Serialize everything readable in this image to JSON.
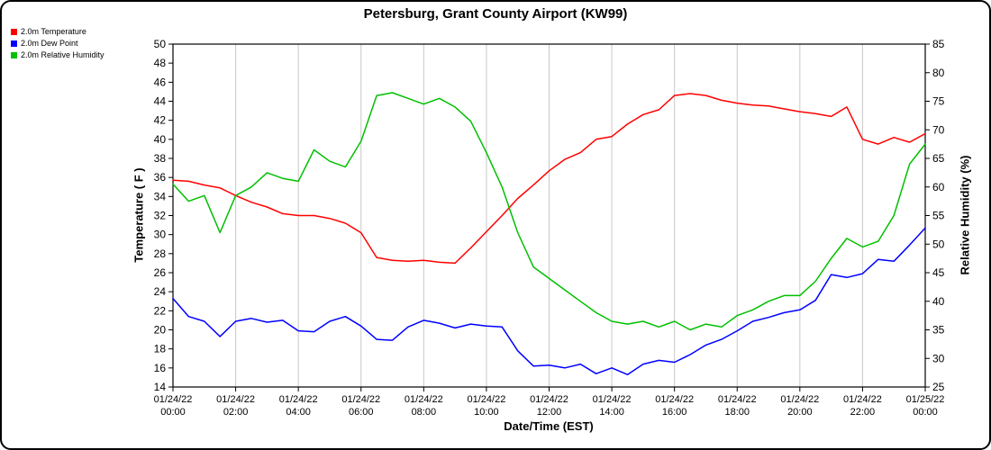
{
  "chart_data": {
    "type": "line",
    "title": "Petersburg, Grant County Airport (KW99)",
    "xlabel": "Date/Time (EST)",
    "ylabel_left": "Temperature ( F )",
    "ylabel_right": "Relative Humidity (%)",
    "legend_position": "top-left",
    "grid": "vertical-only",
    "grid_color": "#c8c8c8",
    "x_range": [
      0,
      24
    ],
    "x_step_hours": 0.5,
    "left_axis": {
      "min": 14,
      "max": 50,
      "step": 2,
      "ticks": [
        50,
        48,
        46,
        44,
        42,
        40,
        38,
        36,
        34,
        32,
        30,
        28,
        26,
        24,
        22,
        20,
        18,
        16,
        14
      ]
    },
    "right_axis": {
      "min": 25,
      "max": 85,
      "step": 5,
      "ticks": [
        85,
        80,
        75,
        70,
        65,
        60,
        55,
        50,
        45,
        40,
        35,
        30,
        25
      ]
    },
    "x_ticks": [
      {
        "hour": 0,
        "date": "01/24/22",
        "time": "00:00"
      },
      {
        "hour": 2,
        "date": "01/24/22",
        "time": "02:00"
      },
      {
        "hour": 4,
        "date": "01/24/22",
        "time": "04:00"
      },
      {
        "hour": 6,
        "date": "01/24/22",
        "time": "06:00"
      },
      {
        "hour": 8,
        "date": "01/24/22",
        "time": "08:00"
      },
      {
        "hour": 10,
        "date": "01/24/22",
        "time": "10:00"
      },
      {
        "hour": 12,
        "date": "01/24/22",
        "time": "12:00"
      },
      {
        "hour": 14,
        "date": "01/24/22",
        "time": "14:00"
      },
      {
        "hour": 16,
        "date": "01/24/22",
        "time": "16:00"
      },
      {
        "hour": 18,
        "date": "01/24/22",
        "time": "18:00"
      },
      {
        "hour": 20,
        "date": "01/24/22",
        "time": "20:00"
      },
      {
        "hour": 22,
        "date": "01/24/22",
        "time": "22:00"
      },
      {
        "hour": 24,
        "date": "01/25/22",
        "time": "00:00"
      }
    ],
    "series": [
      {
        "id": "temperature",
        "name": "2.0m Temperature",
        "color": "#ff0000",
        "axis": "left",
        "values": [
          35.7,
          35.6,
          35.2,
          34.9,
          34.1,
          33.4,
          32.9,
          32.2,
          32.0,
          32.0,
          31.7,
          31.2,
          30.2,
          27.6,
          27.3,
          27.2,
          27.3,
          27.1,
          27.0,
          28.6,
          30.3,
          32.0,
          33.8,
          35.2,
          36.7,
          37.9,
          38.6,
          40.0,
          40.3,
          41.6,
          42.6,
          43.1,
          44.6,
          44.8,
          44.6,
          44.1,
          43.8,
          43.6,
          43.5,
          43.2,
          42.9,
          42.7,
          42.4,
          43.4,
          40.0,
          39.5,
          40.2,
          39.7,
          40.6
        ]
      },
      {
        "id": "dew-point",
        "name": "2.0m Dew Point",
        "color": "#0000ff",
        "axis": "left",
        "values": [
          23.3,
          21.4,
          20.9,
          19.3,
          20.9,
          21.2,
          20.8,
          21.0,
          19.9,
          19.8,
          20.9,
          21.4,
          20.4,
          19.0,
          18.9,
          20.3,
          21.0,
          20.7,
          20.2,
          20.6,
          20.4,
          20.3,
          17.8,
          16.2,
          16.3,
          16.0,
          16.4,
          15.4,
          16.0,
          15.3,
          16.4,
          16.8,
          16.6,
          17.4,
          18.4,
          19.0,
          19.9,
          20.9,
          21.3,
          21.8,
          22.1,
          23.1,
          25.8,
          25.5,
          25.9,
          27.4,
          27.2,
          28.9,
          30.7
        ]
      },
      {
        "id": "relative-humidity",
        "name": "2.0m Relative Humidity",
        "color": "#00c000",
        "axis": "right",
        "values": [
          60.5,
          57.5,
          58.5,
          52.0,
          58.5,
          60.0,
          62.5,
          61.5,
          61.0,
          66.5,
          64.5,
          63.5,
          68.0,
          76.0,
          76.5,
          75.5,
          74.5,
          75.5,
          74.0,
          71.5,
          66.0,
          60.0,
          52.0,
          46.0,
          44.0,
          42.0,
          40.0,
          38.0,
          36.5,
          36.0,
          36.5,
          35.5,
          36.5,
          35.0,
          36.0,
          35.5,
          37.5,
          38.5,
          40.0,
          41.0,
          41.0,
          43.5,
          47.5,
          51.0,
          49.5,
          50.5,
          55.0,
          64.0,
          67.5
        ]
      }
    ]
  },
  "legend": [
    {
      "label": "2.0m Temperature",
      "color": "#ff0000"
    },
    {
      "label": "2.0m Dew Point",
      "color": "#0000ff"
    },
    {
      "label": "2.0m Relative Humidity",
      "color": "#00c000"
    }
  ]
}
